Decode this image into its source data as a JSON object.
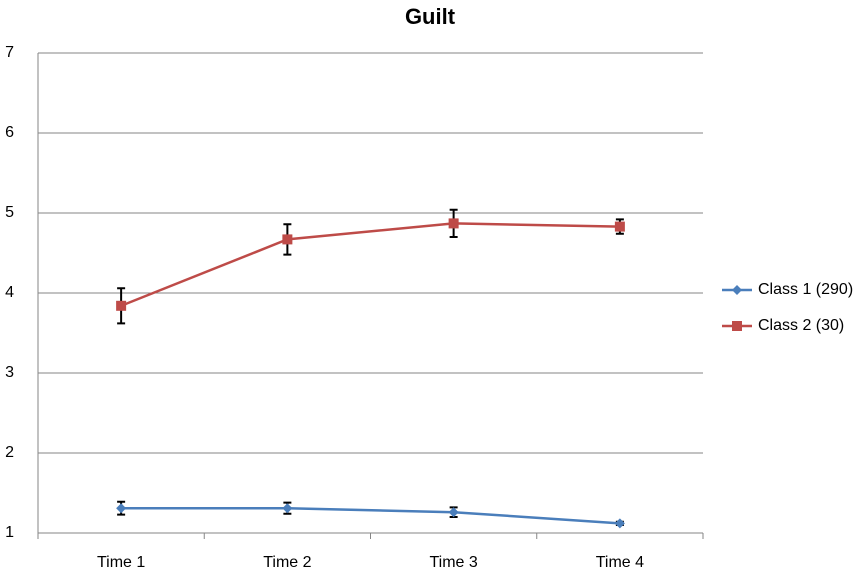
{
  "chart_data": {
    "type": "line",
    "title": "Guilt",
    "categories": [
      "Time 1",
      "Time 2",
      "Time 3",
      "Time 4"
    ],
    "series": [
      {
        "name": "Class 1 (290)",
        "color": "#4a7ebb",
        "marker": "diamond",
        "values": [
          1.31,
          1.31,
          1.26,
          1.12
        ],
        "errors": [
          0.08,
          0.07,
          0.06,
          0.02
        ]
      },
      {
        "name": "Class 2 (30)",
        "color": "#be4b48",
        "marker": "square",
        "values": [
          3.84,
          4.67,
          4.87,
          4.83
        ],
        "errors": [
          0.22,
          0.19,
          0.17,
          0.09
        ]
      }
    ],
    "ylim": [
      1,
      7
    ],
    "yticks": [
      1,
      2,
      3,
      4,
      5,
      6,
      7
    ],
    "grid": true,
    "legend": "right"
  }
}
